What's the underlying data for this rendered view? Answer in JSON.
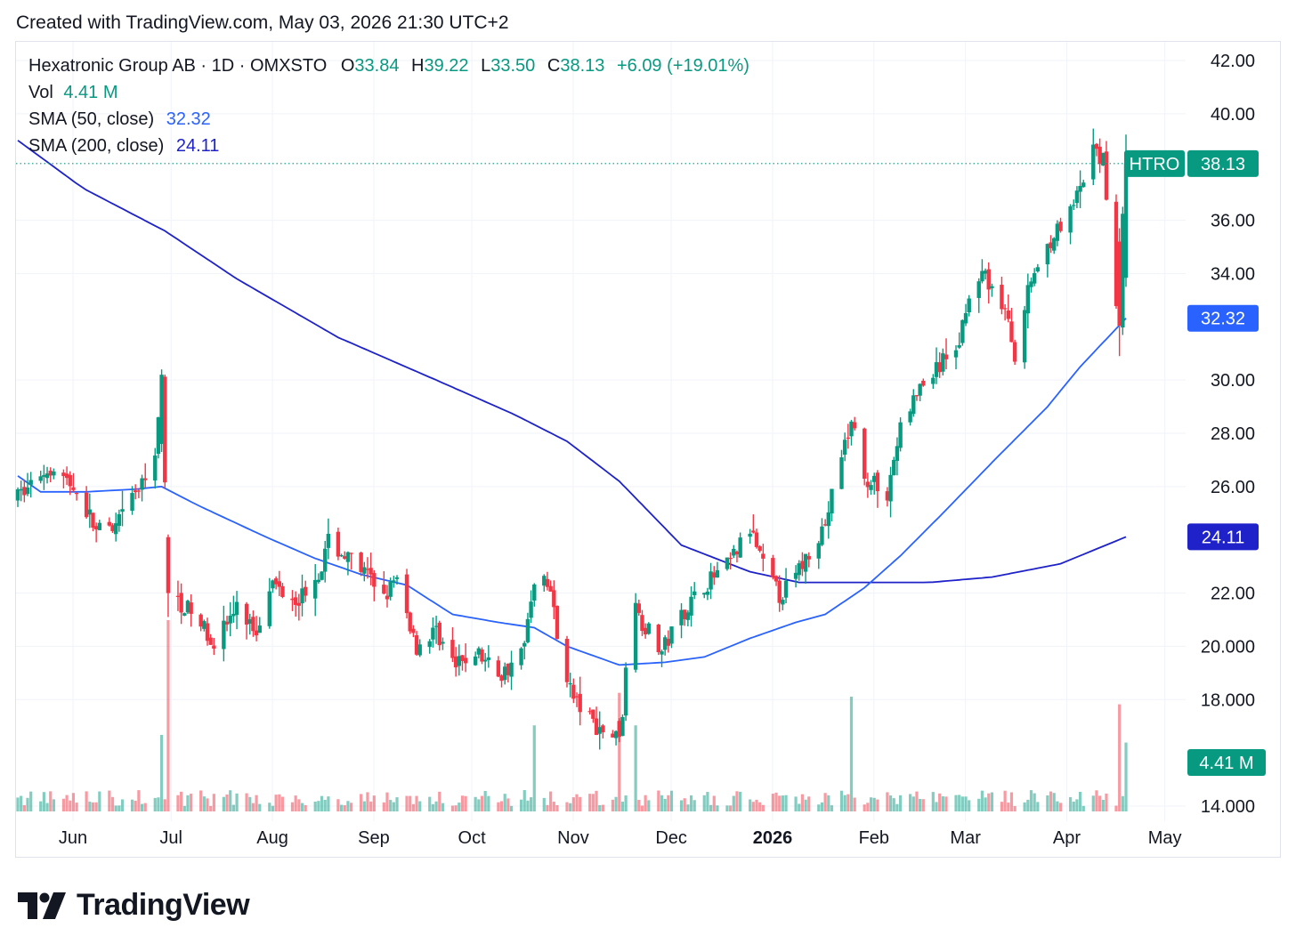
{
  "created_text": "Created with TradingView.com, May 03, 2026 21:30 UTC+2",
  "legend": {
    "symbol_line": "Hexatronic Group AB · 1D · OMXSTO",
    "o_label": "O",
    "o_value": "33.84",
    "h_label": "H",
    "h_value": "39.22",
    "l_label": "L",
    "l_value": "33.50",
    "c_label": "C",
    "c_value": "38.13",
    "change": "+6.09 (+19.01%)",
    "vol_label": "Vol",
    "vol_value": "4.41 M",
    "sma50_label": "SMA (50, close)",
    "sma50_value": "32.32",
    "sma200_label": "SMA (200, close)",
    "sma200_value": "24.11"
  },
  "brand": "TradingView",
  "colors": {
    "up": "#089981",
    "down": "#f23645",
    "sma50": "#2962ff",
    "sma200": "#1e22c8",
    "grid": "#f0f3fa"
  },
  "chart_data": {
    "type": "candlestick",
    "symbol": "HTRO",
    "interval": "1D",
    "y_axis": {
      "labels": [
        "42.00",
        "40.00",
        "36.00",
        "34.00",
        "30.00",
        "28.00",
        "26.00",
        "22.00",
        "20.000",
        "18.000",
        "14.000"
      ],
      "values": [
        42,
        40,
        36,
        34,
        30,
        28,
        26,
        22,
        20,
        18,
        14
      ],
      "min": 14.0,
      "max": 42.0
    },
    "x_axis": {
      "labels": [
        "Jun",
        "Jul",
        "Aug",
        "Sep",
        "Oct",
        "Nov",
        "Dec",
        "2026",
        "Feb",
        "Mar",
        "Apr",
        "May"
      ],
      "bold": [
        false,
        false,
        false,
        false,
        false,
        false,
        false,
        true,
        false,
        false,
        false,
        false
      ]
    },
    "price_tag": {
      "symbol": "HTRO",
      "value": "38.13",
      "numeric": 38.13
    },
    "sma50_tag": {
      "value": "32.32",
      "numeric": 32.32
    },
    "sma200_tag": {
      "value": "24.11",
      "numeric": 24.11
    },
    "volume_tag": {
      "value": "4.41 M"
    },
    "price_path": [
      [
        "2025-05-26",
        25.6
      ],
      [
        "2025-06-02",
        26.5
      ],
      [
        "2025-06-06",
        26.8
      ],
      [
        "2025-06-13",
        25.8
      ],
      [
        "2025-06-19",
        24.4
      ],
      [
        "2025-06-24",
        24.2
      ],
      [
        "2025-06-30",
        25.6
      ],
      [
        "2025-07-04",
        26.2
      ],
      [
        "2025-07-07",
        27.4
      ],
      [
        "2025-07-09",
        30.0
      ],
      [
        "2025-07-11",
        22.0
      ],
      [
        "2025-07-17",
        21.4
      ],
      [
        "2025-07-25",
        20.2
      ],
      [
        "2025-08-01",
        21.4
      ],
      [
        "2025-08-07",
        20.6
      ],
      [
        "2025-08-11",
        22.4
      ],
      [
        "2025-08-20",
        21.8
      ],
      [
        "2025-08-27",
        23.0
      ],
      [
        "2025-08-29",
        23.9
      ],
      [
        "2025-09-05",
        23.2
      ],
      [
        "2025-09-15",
        22.0
      ],
      [
        "2025-09-19",
        22.4
      ],
      [
        "2025-09-25",
        20.0
      ],
      [
        "2025-10-01",
        20.6
      ],
      [
        "2025-10-07",
        19.2
      ],
      [
        "2025-10-13",
        19.8
      ],
      [
        "2025-10-21",
        18.9
      ],
      [
        "2025-10-28",
        20.0
      ],
      [
        "2025-10-31",
        22.6
      ],
      [
        "2025-11-05",
        22.1
      ],
      [
        "2025-11-07",
        20.3
      ],
      [
        "2025-11-12",
        18.0
      ],
      [
        "2025-11-19",
        17.0
      ],
      [
        "2025-11-25",
        16.6
      ],
      [
        "2025-11-27",
        17.6
      ],
      [
        "2025-12-01",
        21.3
      ],
      [
        "2025-12-09",
        19.8
      ],
      [
        "2025-12-15",
        21.2
      ],
      [
        "2025-12-22",
        22.3
      ],
      [
        "2025-12-29",
        23.0
      ],
      [
        "2026-01-05",
        24.4
      ],
      [
        "2026-01-09",
        23.0
      ],
      [
        "2026-01-14",
        21.9
      ],
      [
        "2026-01-19",
        22.6
      ],
      [
        "2026-01-23",
        23.6
      ],
      [
        "2026-01-28",
        24.6
      ],
      [
        "2026-02-02",
        27.2
      ],
      [
        "2026-02-05",
        28.3
      ],
      [
        "2026-02-10",
        26.2
      ],
      [
        "2026-02-16",
        25.8
      ],
      [
        "2026-02-20",
        28.2
      ],
      [
        "2026-02-26",
        29.7
      ],
      [
        "2026-03-04",
        30.5
      ],
      [
        "2026-03-10",
        31.5
      ],
      [
        "2026-03-13",
        33.4
      ],
      [
        "2026-03-18",
        33.9
      ],
      [
        "2026-03-24",
        32.6
      ],
      [
        "2026-03-27",
        31.0
      ],
      [
        "2026-04-01",
        33.8
      ],
      [
        "2026-04-07",
        35.3
      ],
      [
        "2026-04-13",
        36.2
      ],
      [
        "2026-04-16",
        37.1
      ],
      [
        "2026-04-20",
        38.6
      ],
      [
        "2026-04-23",
        38.2
      ],
      [
        "2026-04-27",
        33.0
      ],
      [
        "2026-04-30",
        38.13
      ]
    ],
    "notable_days": [
      {
        "date": "2025-07-09",
        "open": 27.6,
        "high": 30.4,
        "low": 27.3,
        "close": 30.2
      },
      {
        "date": "2025-07-11",
        "open": 24.1,
        "high": 24.2,
        "low": 21.1,
        "close": 22.0
      },
      {
        "date": "2025-11-26",
        "open": 17.2,
        "high": 17.3,
        "low": 16.4,
        "close": 16.6
      },
      {
        "date": "2025-11-28",
        "open": 17.4,
        "high": 19.4,
        "low": 17.2,
        "close": 19.2
      },
      {
        "date": "2026-04-28",
        "open": 35.2,
        "high": 35.7,
        "low": 30.9,
        "close": 32.04
      },
      {
        "date": "2026-04-30",
        "open": 33.84,
        "high": 39.22,
        "low": 33.5,
        "close": 38.13
      }
    ],
    "sma50": [
      [
        "2025-05-26",
        26.4
      ],
      [
        "2025-06-02",
        25.8
      ],
      [
        "2025-06-16",
        25.8
      ],
      [
        "2025-07-01",
        25.9
      ],
      [
        "2025-07-09",
        26.0
      ],
      [
        "2025-07-20",
        25.3
      ],
      [
        "2025-08-10",
        24.1
      ],
      [
        "2025-08-25",
        23.3
      ],
      [
        "2025-09-08",
        22.7
      ],
      [
        "2025-09-22",
        22.3
      ],
      [
        "2025-10-06",
        21.2
      ],
      [
        "2025-10-20",
        20.9
      ],
      [
        "2025-10-31",
        20.7
      ],
      [
        "2025-11-10",
        20.0
      ],
      [
        "2025-11-26",
        19.3
      ],
      [
        "2025-12-10",
        19.4
      ],
      [
        "2025-12-22",
        19.6
      ],
      [
        "2026-01-05",
        20.3
      ],
      [
        "2026-01-19",
        20.9
      ],
      [
        "2026-01-28",
        21.2
      ],
      [
        "2026-02-09",
        22.2
      ],
      [
        "2026-02-20",
        23.4
      ],
      [
        "2026-03-05",
        25.0
      ],
      [
        "2026-03-20",
        26.9
      ],
      [
        "2026-04-06",
        29.0
      ],
      [
        "2026-04-16",
        30.5
      ],
      [
        "2026-04-30",
        32.32
      ]
    ],
    "sma200": [
      [
        "2025-05-26",
        39.0
      ],
      [
        "2025-06-15",
        37.2
      ],
      [
        "2025-07-10",
        35.6
      ],
      [
        "2025-08-01",
        33.8
      ],
      [
        "2025-09-01",
        31.6
      ],
      [
        "2025-10-01",
        30.0
      ],
      [
        "2025-10-25",
        28.7
      ],
      [
        "2025-11-10",
        27.7
      ],
      [
        "2025-11-26",
        26.2
      ],
      [
        "2025-12-15",
        23.8
      ],
      [
        "2026-01-05",
        22.8
      ],
      [
        "2026-01-20",
        22.4
      ],
      [
        "2026-02-05",
        22.4
      ],
      [
        "2026-03-01",
        22.4
      ],
      [
        "2026-03-20",
        22.6
      ],
      [
        "2026-04-10",
        23.1
      ],
      [
        "2026-04-30",
        24.11
      ]
    ],
    "volume_notes": "relative volume bars along bottom; spikes on 2025-07-11, 2025-11-26, 2026-02-05, 2026-04-28"
  }
}
